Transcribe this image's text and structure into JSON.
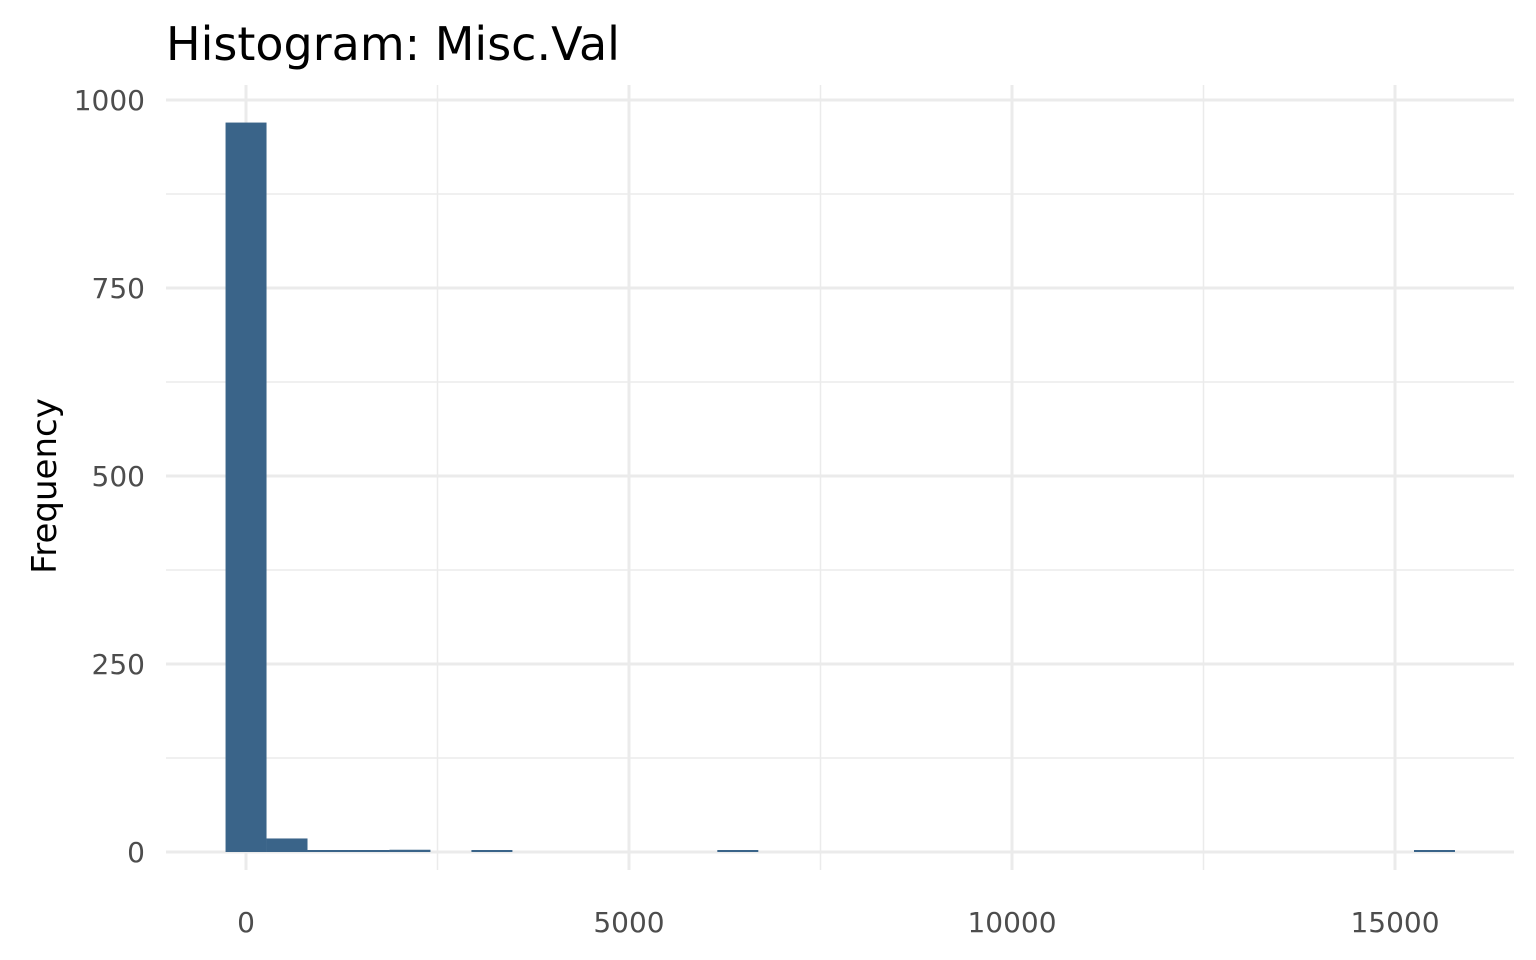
{
  "chart_data": {
    "type": "bar",
    "title": "Histogram:  Misc.Val",
    "xlabel": "",
    "ylabel": "Frequency",
    "xlim": [
      -1000,
      16000
    ],
    "ylim": [
      0,
      1000
    ],
    "x_ticks": [
      0,
      5000,
      10000,
      15000
    ],
    "x_tick_labels": [
      "0",
      "5000",
      "10000",
      "15000"
    ],
    "y_ticks": [
      0,
      250,
      500,
      750,
      1000
    ],
    "y_tick_labels": [
      "0",
      "250",
      "500",
      "750",
      "1000"
    ],
    "bin_width": 535,
    "bins": [
      {
        "start": -267,
        "end": 268,
        "count": 970
      },
      {
        "start": 268,
        "end": 803,
        "count": 18
      },
      {
        "start": 803,
        "end": 1338,
        "count": 2
      },
      {
        "start": 1338,
        "end": 1873,
        "count": 2
      },
      {
        "start": 1873,
        "end": 2408,
        "count": 3
      },
      {
        "start": 2943,
        "end": 3478,
        "count": 1
      },
      {
        "start": 6153,
        "end": 6688,
        "count": 1
      },
      {
        "start": 15248,
        "end": 15783,
        "count": 1
      }
    ],
    "bar_color": "#3a6489",
    "grid": true,
    "legend": "none"
  }
}
